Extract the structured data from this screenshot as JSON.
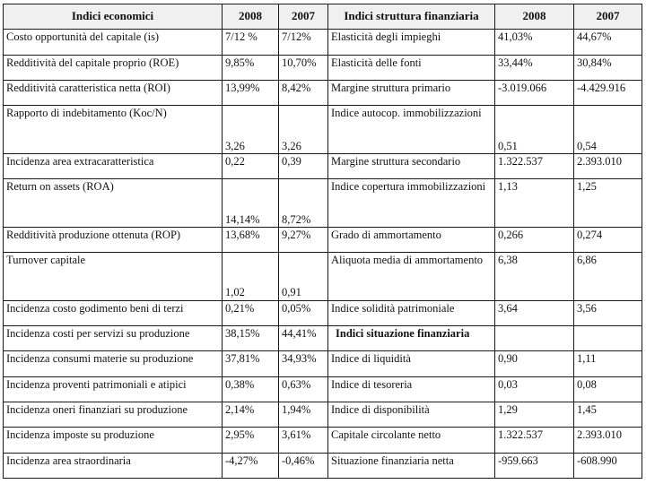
{
  "header": {
    "left_title": "Indici economici",
    "y1": "2008",
    "y2": "2007",
    "right_title": "Indici struttura finanziaria",
    "y3": "2008",
    "y4": "2007"
  },
  "rows": [
    {
      "l": "Costo opportunità del capitale (is)",
      "a": "7/12 %",
      "b": "7/12%",
      "r": "Elasticità degli impieghi",
      "c": "41,03%",
      "d": "44,67%"
    },
    {
      "l": "Redditività del capitale proprio (ROE)",
      "a": "9,85%",
      "b": "10,70%",
      "r": "Elasticità delle fonti",
      "c": "33,44%",
      "d": "30,84%"
    },
    {
      "l": "Redditività caratteristica netta (ROI)",
      "a": "13,99%",
      "b": "8,42%",
      "r": "Margine struttura primario",
      "c": "-3.019.066",
      "d": "-4.429.916"
    },
    {
      "l": "Rapporto di indebitamento (Koc/N)",
      "a": "3,26",
      "b": "3,26",
      "r": "Indice autocop. immobilizzazioni",
      "c": "0,51",
      "d": "0,54"
    },
    {
      "l": "Incidenza area extracaratteristica",
      "a": "0,22",
      "b": "0,39",
      "r": "Margine struttura secondario",
      "c": "1.322.537",
      "d": "2.393.010"
    },
    {
      "l": "Return on assets (ROA)",
      "a": "14,14%",
      "b": "8,72%",
      "r": "Indice copertura immobilizzazioni",
      "c": "1,13",
      "d": "1,25"
    },
    {
      "l": "Redditività produzione ottenuta (ROP)",
      "a": "13,68%",
      "b": "9,27%",
      "r": "Grado di ammortamento",
      "c": "0,266",
      "d": "0,274"
    },
    {
      "l": "Turnover capitale",
      "a": "1,02",
      "b": "0,91",
      "r": "Aliquota media di ammortamento",
      "c": "6,38",
      "d": "6,86"
    },
    {
      "l": "Incidenza costo godimento beni di terzi",
      "a": "0,21%",
      "b": "0,05%",
      "r": "Indice solidità patrimoniale",
      "c": "3,64",
      "d": "3,56"
    },
    {
      "l": "Incidenza costi per servizi su produzione",
      "a": "38,15%",
      "b": "44,41%",
      "r": "Indici situazione finanziaria",
      "c": "",
      "d": ""
    },
    {
      "l": "Incidenza consumi materie su produzione",
      "a": "37,81%",
      "b": "34,93%",
      "r": "Indice di liquidità",
      "c": "0,90",
      "d": "1,11"
    },
    {
      "l": "Incidenza proventi patrimoniali e atipici",
      "a": "0,38%",
      "b": "0,63%",
      "r": "Indice di tesoreria",
      "c": "0,03",
      "d": "0,08"
    },
    {
      "l": "Incidenza oneri finanziari su produzione",
      "a": "2,14%",
      "b": "1,94%",
      "r": "Indice di disponibilità",
      "c": "1,29",
      "d": "1,45"
    },
    {
      "l": "Incidenza imposte su produzione",
      "a": "2,95%",
      "b": "3,61%",
      "r": "Capitale circolante netto",
      "c": "1.322.537",
      "d": "2.393.010"
    },
    {
      "l": "Incidenza area straordinaria",
      "a": "-4,27%",
      "b": "-0,46%",
      "r": "Situazione finanziaria netta",
      "c": "-959.663",
      "d": "-608.990"
    }
  ]
}
